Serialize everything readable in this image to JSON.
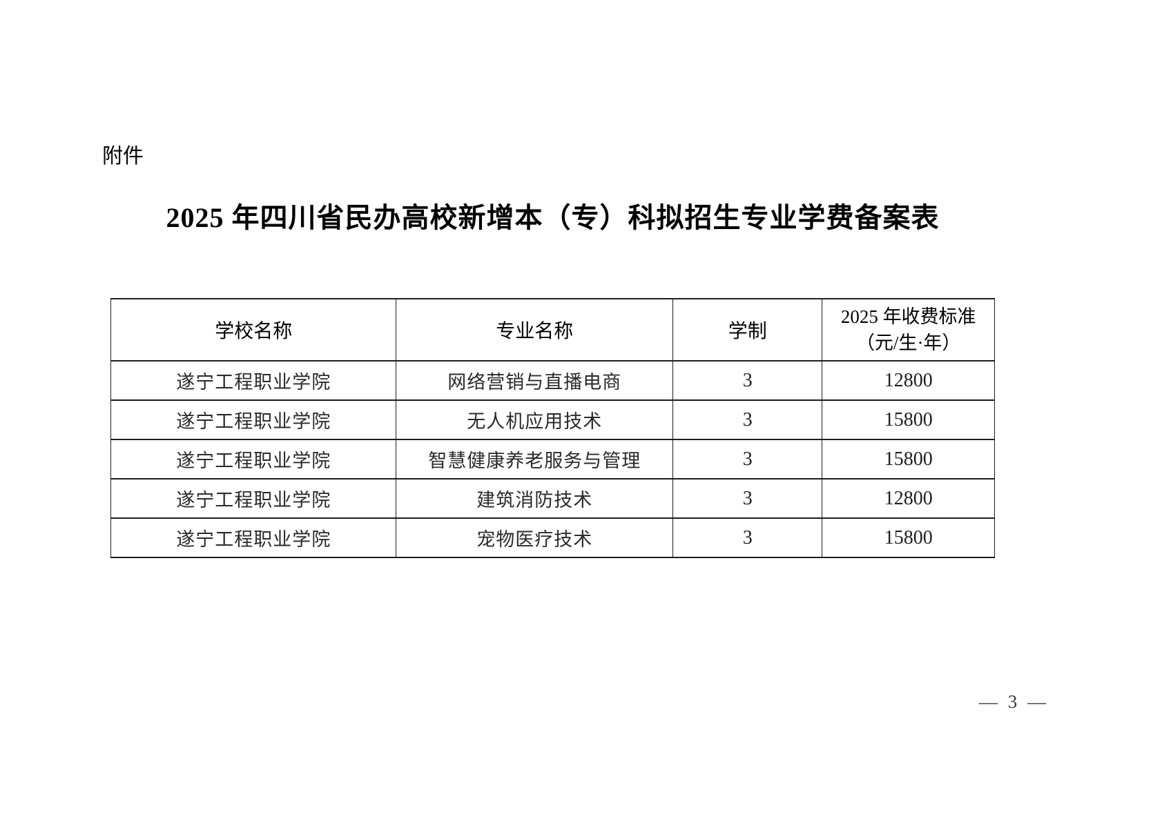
{
  "page": {
    "attachment_label": "附件",
    "title": "2025 年四川省民办高校新增本（专）科拟招生专业学费备案表",
    "page_number": "— 3 —"
  },
  "table": {
    "headers": {
      "school": "学校名称",
      "major": "专业名称",
      "duration": "学制",
      "fee": "2025 年收费标准\n（元/生·年）"
    },
    "rows": [
      {
        "school": "遂宁工程职业学院",
        "major": "网络营销与直播电商",
        "duration": "3",
        "fee": "12800"
      },
      {
        "school": "遂宁工程职业学院",
        "major": "无人机应用技术",
        "duration": "3",
        "fee": "15800"
      },
      {
        "school": "遂宁工程职业学院",
        "major": "智慧健康养老服务与管理",
        "duration": "3",
        "fee": "15800"
      },
      {
        "school": "遂宁工程职业学院",
        "major": "建筑消防技术",
        "duration": "3",
        "fee": "12800"
      },
      {
        "school": "遂宁工程职业学院",
        "major": "宠物医疗技术",
        "duration": "3",
        "fee": "15800"
      }
    ]
  }
}
